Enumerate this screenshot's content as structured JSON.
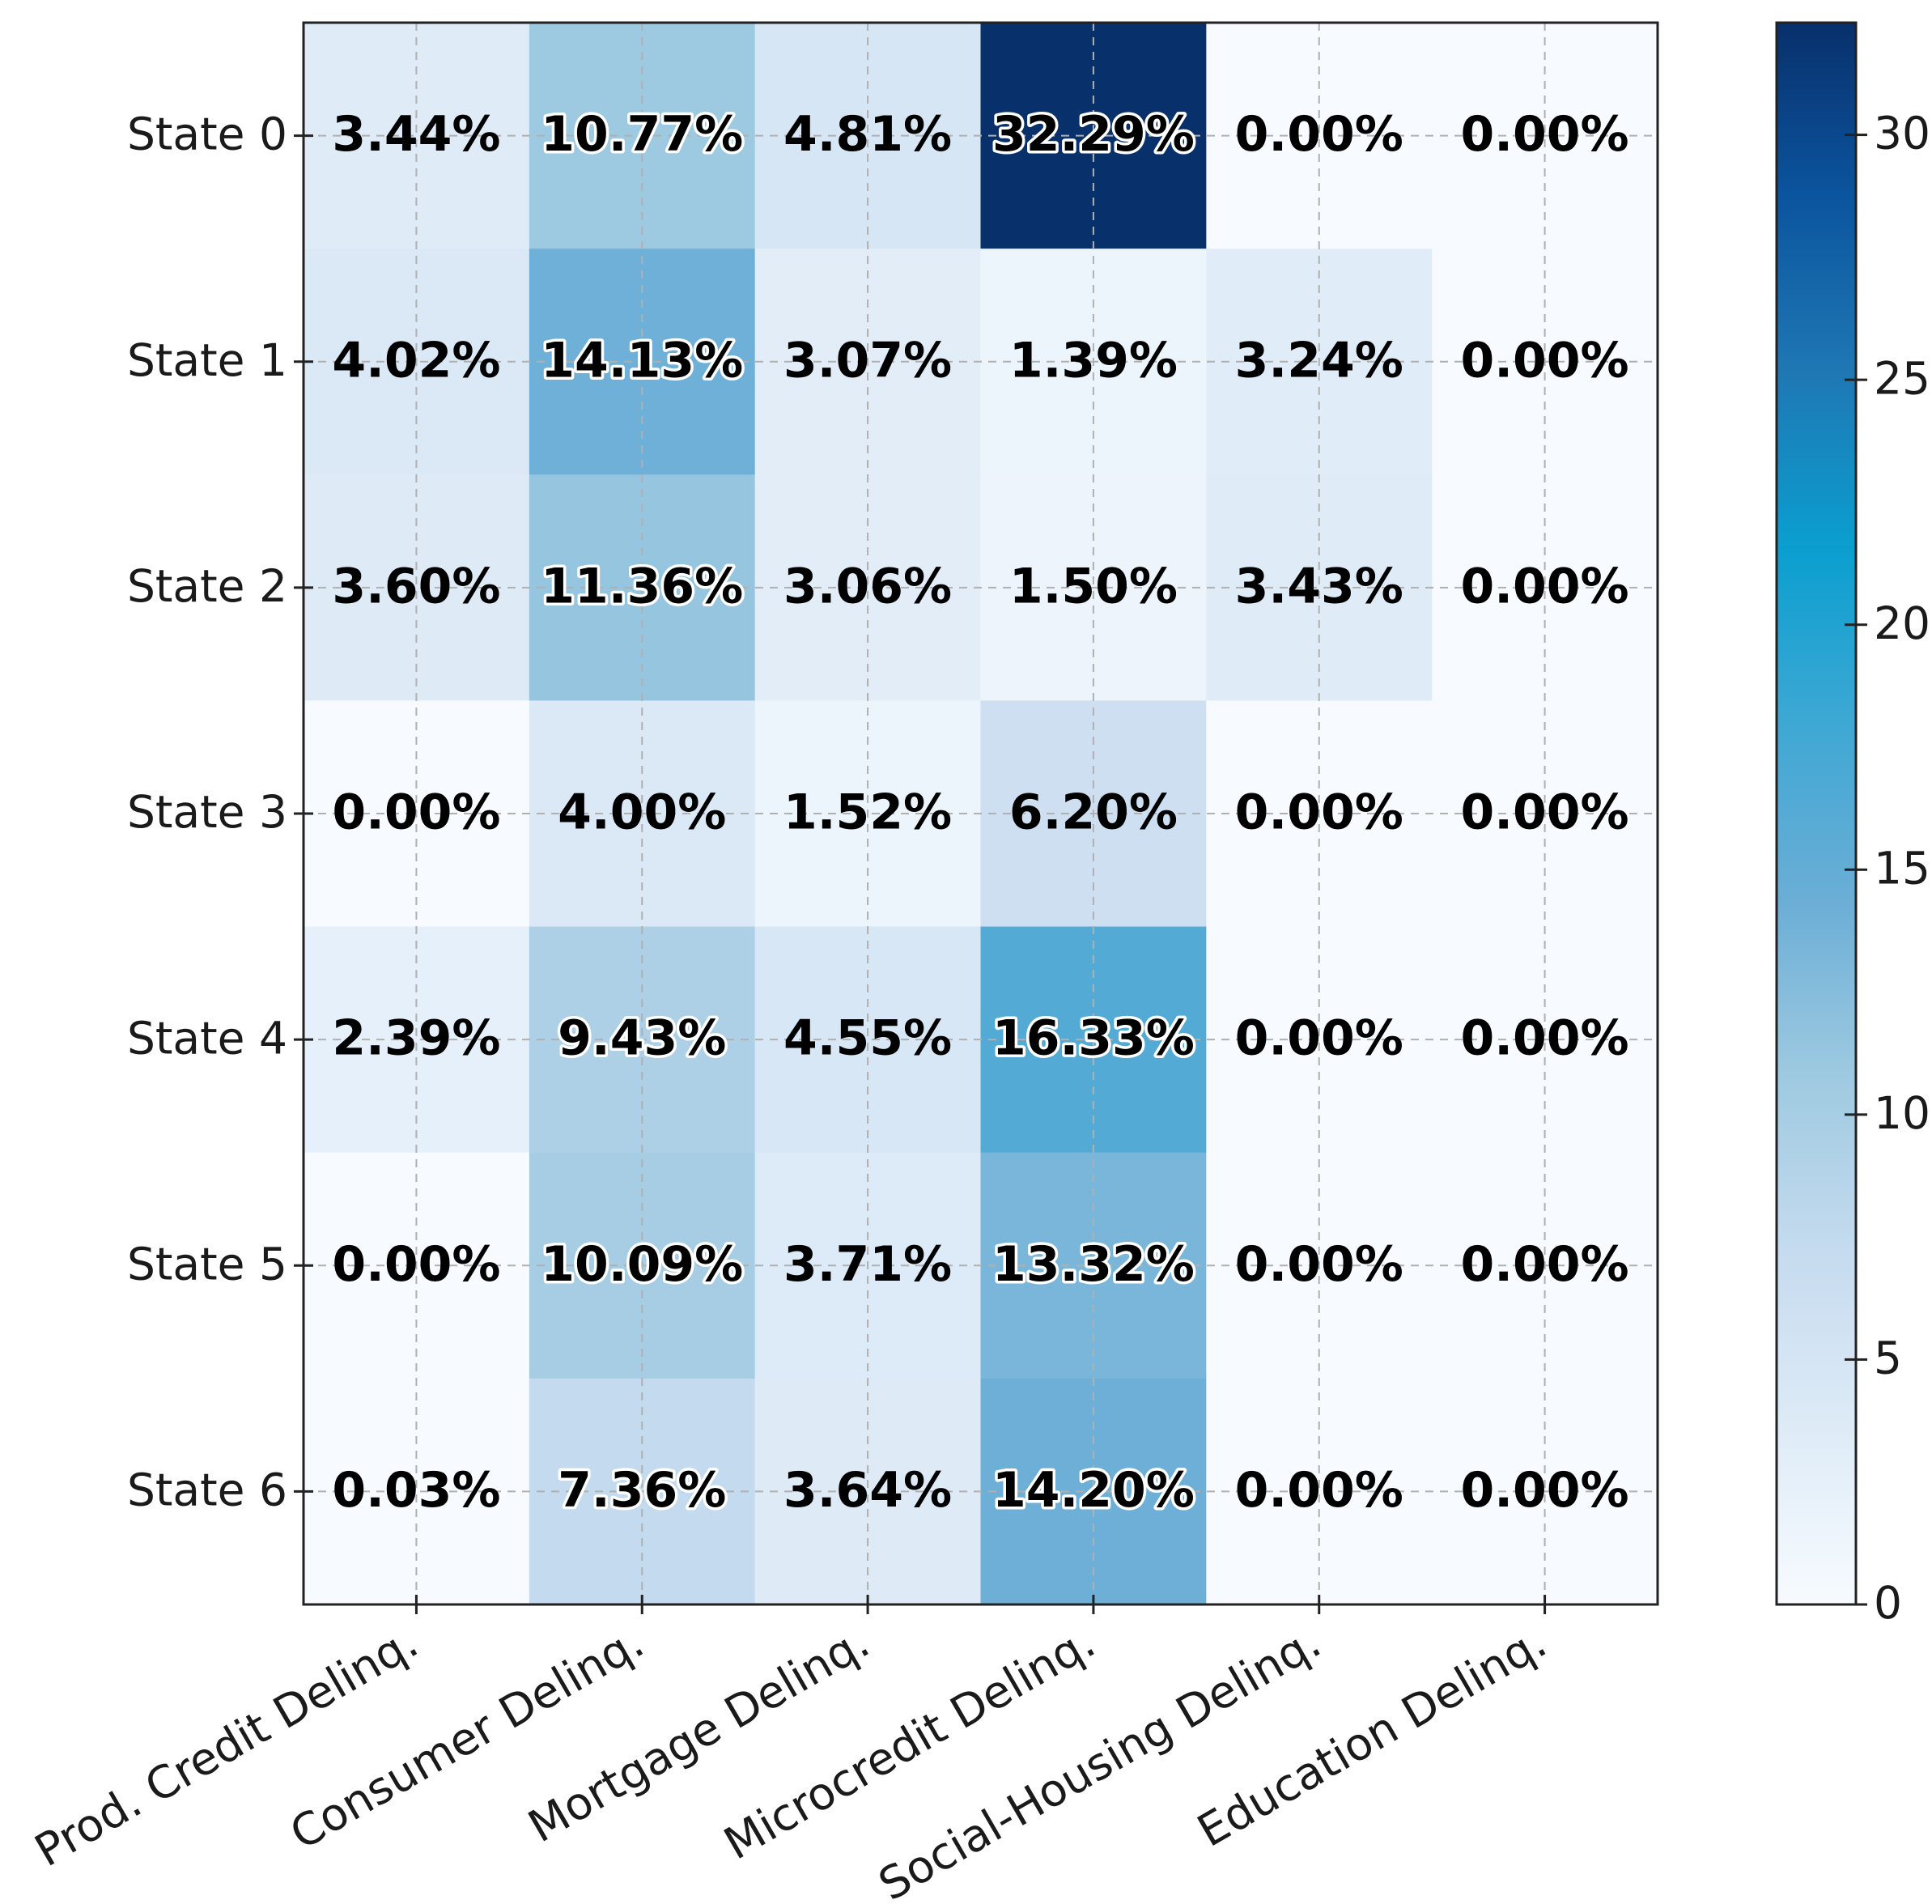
{
  "chart_data": {
    "type": "heatmap",
    "title": "",
    "xlabel": "",
    "ylabel": "",
    "rows": [
      "State 0",
      "State 1",
      "State 2",
      "State 3",
      "State 4",
      "State 5",
      "State 6"
    ],
    "columns": [
      "Prod. Credit Delinq.",
      "Consumer Delinq.",
      "Mortgage Delinq.",
      "Microcredit Delinq.",
      "Social-Housing Delinq.",
      "Education Delinq."
    ],
    "values": [
      [
        3.44,
        10.77,
        4.81,
        32.29,
        0.0,
        0.0
      ],
      [
        4.02,
        14.13,
        3.07,
        1.39,
        3.24,
        0.0
      ],
      [
        3.6,
        11.36,
        3.06,
        1.5,
        3.43,
        0.0
      ],
      [
        0.0,
        4.0,
        1.52,
        6.2,
        0.0,
        0.0
      ],
      [
        2.39,
        9.43,
        4.55,
        16.33,
        0.0,
        0.0
      ],
      [
        0.0,
        10.09,
        3.71,
        13.32,
        0.0,
        0.0
      ],
      [
        0.03,
        7.36,
        3.64,
        14.2,
        0.0,
        0.0
      ]
    ],
    "value_labels": [
      [
        "3.44%",
        "10.77%",
        "4.81%",
        "32.29%",
        "0.00%",
        "0.00%"
      ],
      [
        "4.02%",
        "14.13%",
        "3.07%",
        "1.39%",
        "3.24%",
        "0.00%"
      ],
      [
        "3.60%",
        "11.36%",
        "3.06%",
        "1.50%",
        "3.43%",
        "0.00%"
      ],
      [
        "0.00%",
        "4.00%",
        "1.52%",
        "6.20%",
        "0.00%",
        "0.00%"
      ],
      [
        "2.39%",
        "9.43%",
        "4.55%",
        "16.33%",
        "0.00%",
        "0.00%"
      ],
      [
        "0.00%",
        "10.09%",
        "3.71%",
        "13.32%",
        "0.00%",
        "0.00%"
      ],
      [
        "0.03%",
        "7.36%",
        "3.64%",
        "14.20%",
        "0.00%",
        "0.00%"
      ]
    ],
    "colorbar": {
      "range": [
        0,
        32.29
      ],
      "ticks": [
        0,
        5,
        10,
        15,
        20,
        25,
        30
      ],
      "tick_labels": [
        "0",
        "5",
        "10",
        "15",
        "20",
        "25",
        "30"
      ],
      "colormap": "Blues",
      "position": "right"
    },
    "grid": true,
    "colormap_stops": [
      "#f7fbff",
      "#deebf7",
      "#c6dbef",
      "#9ecae1",
      "#6baed6",
      "#3fa8d4",
      "#0a9fd0",
      "#1f78b4",
      "#0b559f",
      "#08306b"
    ]
  }
}
